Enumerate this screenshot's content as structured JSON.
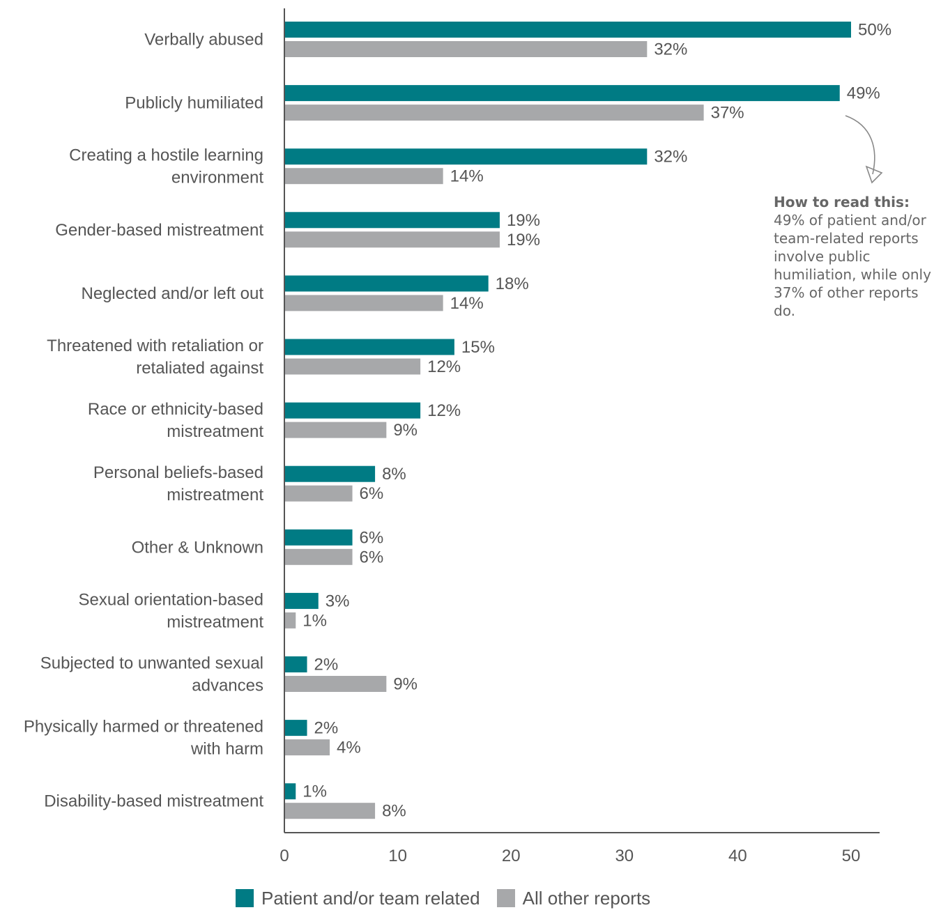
{
  "chart_data": {
    "type": "bar",
    "orientation": "horizontal",
    "categories": [
      [
        "Verbally abused"
      ],
      [
        "Publicly humiliated"
      ],
      [
        "Creating a hostile learning",
        "environment"
      ],
      [
        "Gender-based mistreatment"
      ],
      [
        "Neglected and/or left out"
      ],
      [
        "Threatened with retaliation or",
        "retaliated against"
      ],
      [
        "Race or ethnicity-based",
        "mistreatment"
      ],
      [
        "Personal beliefs-based",
        "mistreatment"
      ],
      [
        "Other & Unknown"
      ],
      [
        "Sexual orientation-based",
        "mistreatment"
      ],
      [
        "Subjected to unwanted sexual",
        "advances"
      ],
      [
        "Physically harmed or threatened",
        "with harm"
      ],
      [
        "Disability-based mistreatment"
      ]
    ],
    "series": [
      {
        "name": "Patient and/or team related",
        "color": "#007b84",
        "values": [
          50,
          49,
          32,
          19,
          18,
          15,
          12,
          8,
          6,
          3,
          2,
          2,
          1
        ],
        "labels": [
          "50%",
          "49%",
          "32%",
          "19%",
          "18%",
          "15%",
          "12%",
          "8%",
          "6%",
          "3%",
          "2%",
          "2%",
          "1%"
        ]
      },
      {
        "name": "All other reports",
        "color": "#a7a8aa",
        "values": [
          32,
          37,
          14,
          19,
          14,
          12,
          9,
          6,
          6,
          1,
          9,
          4,
          8
        ],
        "labels": [
          "32%",
          "37%",
          "14%",
          "19%",
          "14%",
          "12%",
          "9%",
          "6%",
          "6%",
          "1%",
          "9%",
          "4%",
          "8%"
        ]
      }
    ],
    "xlim": [
      0,
      50
    ],
    "xticks": [
      0,
      10,
      20,
      30,
      40,
      50
    ],
    "xtick_labels": [
      "0",
      "10",
      "20",
      "30",
      "40",
      "50"
    ],
    "grid": false,
    "legend_position": "bottom",
    "annotation": {
      "title": "How to read this:",
      "body": "49% of patient and/or team-related reports involve public humiliation, while only 37% of other reports do."
    }
  },
  "legend": {
    "items": [
      {
        "label": "Patient and/or team related",
        "color": "#007b84"
      },
      {
        "label": "All other reports",
        "color": "#a7a8aa"
      }
    ]
  }
}
